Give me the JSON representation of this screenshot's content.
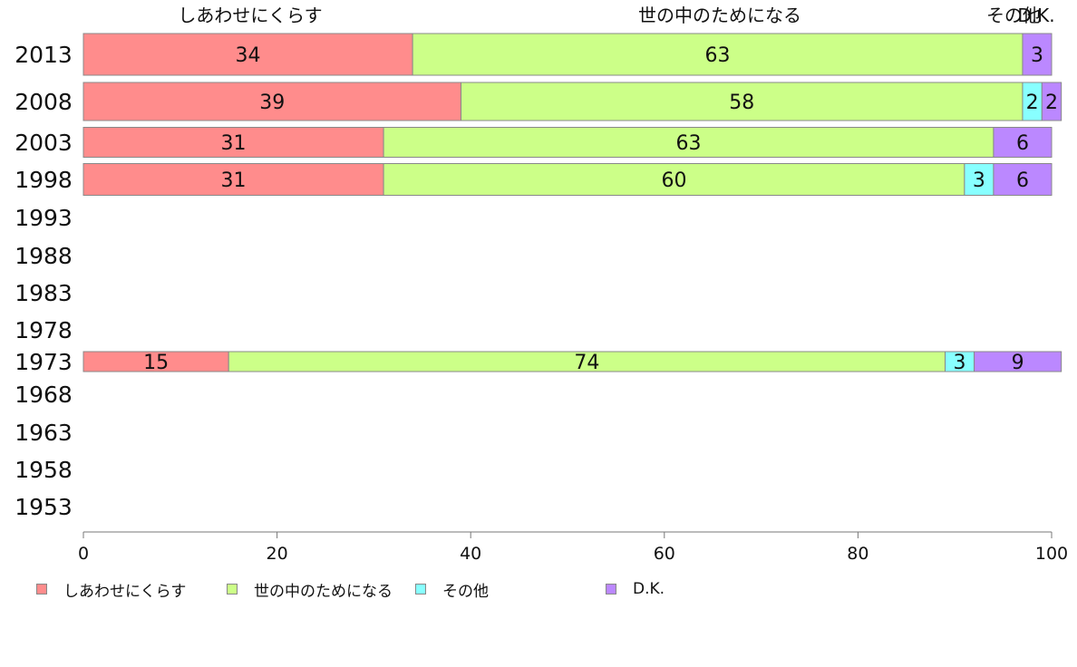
{
  "chart_data": {
    "type": "bar",
    "orientation": "horizontal",
    "stacked": true,
    "categories": [
      "2013",
      "2008",
      "2003",
      "1998",
      "1993",
      "1988",
      "1983",
      "1978",
      "1973",
      "1968",
      "1963",
      "1958",
      "1953"
    ],
    "series": [
      {
        "name": "しあわせにくらす",
        "color": "#ff8c8c",
        "values": [
          34,
          39,
          31,
          31,
          null,
          null,
          null,
          null,
          15,
          null,
          null,
          null,
          null
        ]
      },
      {
        "name": "世の中のためになる",
        "color": "#ccff88",
        "values": [
          63,
          58,
          63,
          60,
          null,
          null,
          null,
          null,
          74,
          null,
          null,
          null,
          null
        ]
      },
      {
        "name": "その他",
        "color": "#88ffff",
        "values": [
          null,
          2,
          null,
          3,
          null,
          null,
          null,
          null,
          3,
          null,
          null,
          null,
          null
        ]
      },
      {
        "name": "D.K.",
        "color": "#bb88ff",
        "values": [
          3,
          2,
          6,
          6,
          null,
          null,
          null,
          null,
          9,
          null,
          null,
          null,
          null
        ]
      }
    ],
    "top_labels": [
      "しあわせにくらす",
      "世の中のためになる",
      "その他",
      "D.K."
    ],
    "xlim": [
      0,
      100
    ],
    "xticks": [
      0,
      20,
      40,
      60,
      80,
      100
    ],
    "grid": false,
    "legend_position": "bottom"
  }
}
